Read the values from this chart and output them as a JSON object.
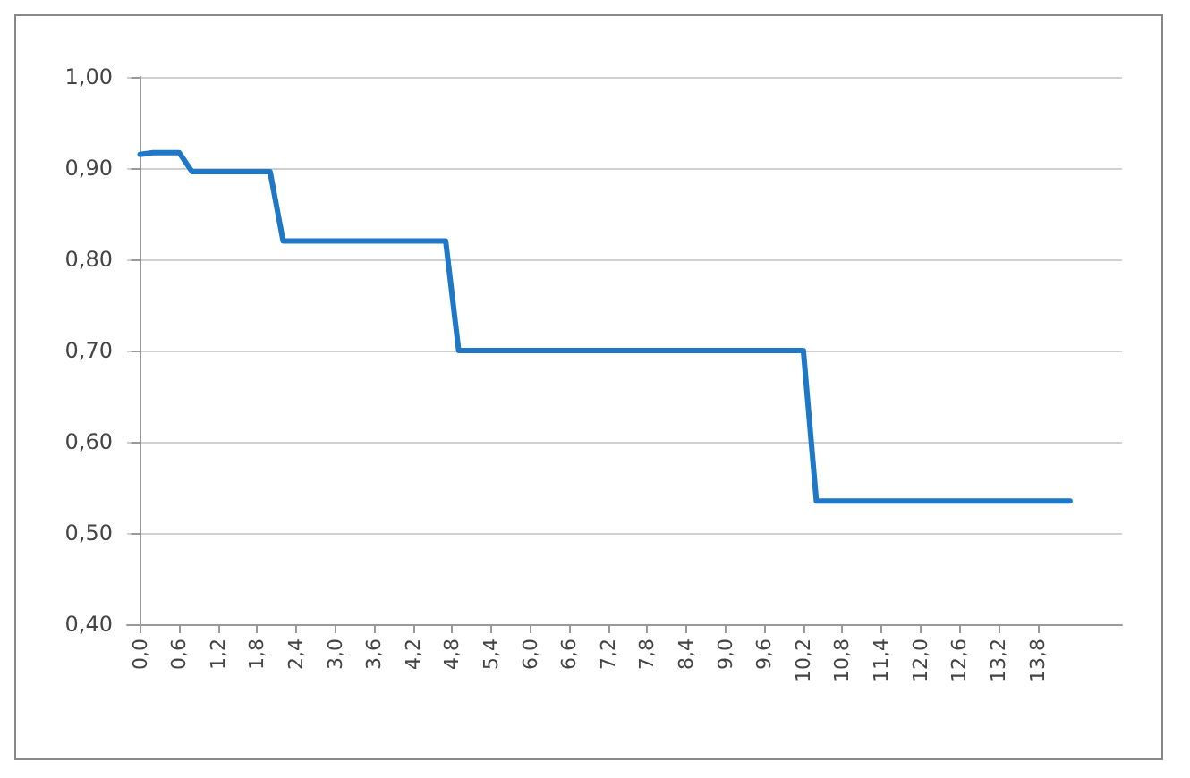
{
  "chart_data": {
    "type": "line",
    "grid": "y",
    "marker": "none",
    "line_style": "solid",
    "xlim": [
      -0.2,
      15.1
    ],
    "xticks": [
      {
        "value": 0,
        "label": "0,0"
      },
      {
        "value": 0.6,
        "label": "0,6"
      },
      {
        "value": 1.2,
        "label": "1,2"
      },
      {
        "value": 1.8,
        "label": "1,8"
      },
      {
        "value": 2.4,
        "label": "2,4"
      },
      {
        "value": 3.0,
        "label": "3,0"
      },
      {
        "value": 3.6,
        "label": "3,6"
      },
      {
        "value": 4.2,
        "label": "4,2"
      },
      {
        "value": 4.8,
        "label": "4,8"
      },
      {
        "value": 5.4,
        "label": "5,4"
      },
      {
        "value": 6.0,
        "label": "6,0"
      },
      {
        "value": 6.6,
        "label": "6,6"
      },
      {
        "value": 7.2,
        "label": "7,2"
      },
      {
        "value": 7.8,
        "label": "7,8"
      },
      {
        "value": 8.4,
        "label": "8,4"
      },
      {
        "value": 9.0,
        "label": "9,0"
      },
      {
        "value": 9.6,
        "label": "9,6"
      },
      {
        "value": 10.2,
        "label": "10,2"
      },
      {
        "value": 10.8,
        "label": "10,8"
      },
      {
        "value": 11.4,
        "label": "11,4"
      },
      {
        "value": 12.0,
        "label": "12,0"
      },
      {
        "value": 12.6,
        "label": "12,6"
      },
      {
        "value": 13.2,
        "label": "13,2"
      },
      {
        "value": 13.8,
        "label": "13,8"
      }
    ],
    "ylim": [
      0.4,
      1.0
    ],
    "yticks": [
      {
        "value": 0.4,
        "label": "0,40"
      },
      {
        "value": 0.5,
        "label": "0,50"
      },
      {
        "value": 0.6,
        "label": "0,60"
      },
      {
        "value": 0.7,
        "label": "0,70"
      },
      {
        "value": 0.8,
        "label": "0,80"
      },
      {
        "value": 0.9,
        "label": "0,90"
      },
      {
        "value": 1.0,
        "label": "1,00"
      }
    ],
    "series": [
      {
        "color": "#1f77c8",
        "x": [
          0,
          0.2,
          0.6,
          0.8,
          2.0,
          2.2,
          4.7,
          4.9,
          10.2,
          10.4,
          14.3
        ],
        "values": [
          0.915,
          0.917,
          0.917,
          0.896,
          0.896,
          0.82,
          0.82,
          0.7,
          0.7,
          0.535,
          0.535
        ]
      }
    ]
  }
}
